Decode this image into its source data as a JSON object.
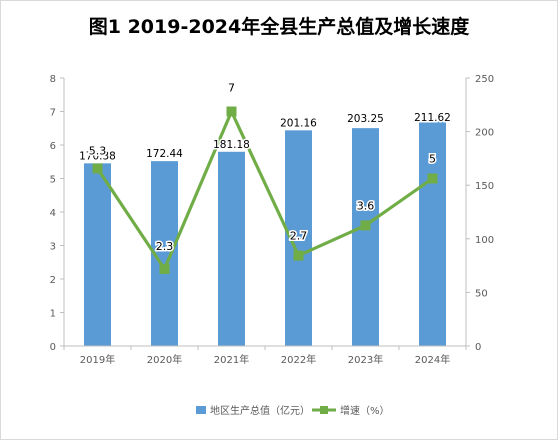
{
  "chart_data": {
    "type": "bar+line",
    "title": "图1  2019-2024年全县生产总值及增长速度",
    "categories": [
      "2019年",
      "2020年",
      "2021年",
      "2022年",
      "2023年",
      "2024年"
    ],
    "series": [
      {
        "name": "地区生产总值（亿元）",
        "type": "bar",
        "axis": "right",
        "values": [
          170.38,
          172.44,
          181.18,
          201.16,
          203.25,
          211.62
        ],
        "labels": [
          "170.38",
          "172.44",
          "181.18",
          "201.16",
          "203.25",
          "211.62"
        ],
        "color": "#5b9bd5"
      },
      {
        "name": "增速（%）",
        "type": "line",
        "axis": "left",
        "values": [
          5.3,
          2.3,
          7,
          2.7,
          3.6,
          5
        ],
        "labels": [
          "5.3",
          "2.3",
          "7",
          "2.7",
          "3.6",
          "5"
        ],
        "color": "#70ad47"
      }
    ],
    "y_left": {
      "min": 0,
      "max": 8,
      "ticks": [
        "0",
        "1",
        "2",
        "3",
        "4",
        "5",
        "6",
        "7",
        "8"
      ]
    },
    "y_right": {
      "min": 0,
      "max": 250,
      "ticks": [
        "0",
        "50",
        "100",
        "150",
        "200",
        "250"
      ]
    },
    "grid": false,
    "legend": "bottom"
  }
}
